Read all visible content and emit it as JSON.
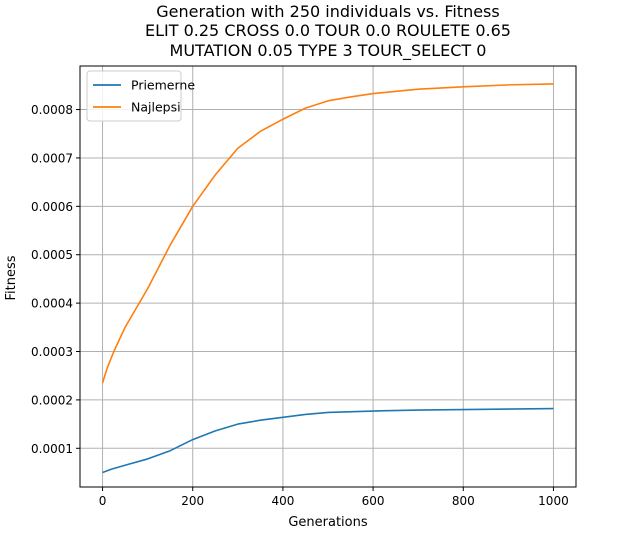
{
  "chart_data": {
    "type": "line",
    "title_lines": [
      "Generation with 250 individuals vs. Fitness",
      "ELIT 0.25 CROSS 0.0 TOUR 0.0 ROULETE 0.65",
      "MUTATION 0.05 TYPE 3 TOUR_SELECT 0"
    ],
    "xlabel": "Generations",
    "ylabel": "Fitness",
    "xlim": [
      -50,
      1050
    ],
    "ylim": [
      2e-05,
      0.00089
    ],
    "x_ticks": [
      0,
      200,
      400,
      600,
      800,
      1000
    ],
    "x_tick_labels": [
      "0",
      "200",
      "400",
      "600",
      "800",
      "1000"
    ],
    "y_ticks": [
      0.0001,
      0.0002,
      0.0003,
      0.0004,
      0.0005,
      0.0006,
      0.0007,
      0.0008
    ],
    "y_tick_labels": [
      "0.0001",
      "0.0002",
      "0.0003",
      "0.0004",
      "0.0005",
      "0.0006",
      "0.0007",
      "0.0008"
    ],
    "grid": true,
    "legend_position": "top-left",
    "series": [
      {
        "name": "Priemerne",
        "color": "#1f77b4",
        "points": [
          [
            0,
            5e-05
          ],
          [
            20,
            5.7e-05
          ],
          [
            50,
            6.5e-05
          ],
          [
            100,
            7.8e-05
          ],
          [
            150,
            9.5e-05
          ],
          [
            200,
            0.000118
          ],
          [
            250,
            0.000136
          ],
          [
            300,
            0.00015
          ],
          [
            350,
            0.000158
          ],
          [
            400,
            0.000164
          ],
          [
            450,
            0.00017
          ],
          [
            500,
            0.000174
          ],
          [
            600,
            0.000177
          ],
          [
            700,
            0.000179
          ],
          [
            800,
            0.00018
          ],
          [
            900,
            0.000181
          ],
          [
            1000,
            0.000182
          ]
        ]
      },
      {
        "name": "Najlepsi",
        "color": "#ff7f0e",
        "points": [
          [
            0,
            0.000235
          ],
          [
            10,
            0.000265
          ],
          [
            25,
            0.0003
          ],
          [
            50,
            0.00035
          ],
          [
            100,
            0.00043
          ],
          [
            150,
            0.00052
          ],
          [
            200,
            0.0006
          ],
          [
            250,
            0.000665
          ],
          [
            300,
            0.00072
          ],
          [
            350,
            0.000755
          ],
          [
            400,
            0.00078
          ],
          [
            450,
            0.000803
          ],
          [
            500,
            0.000818
          ],
          [
            550,
            0.000826
          ],
          [
            600,
            0.000833
          ],
          [
            700,
            0.000842
          ],
          [
            800,
            0.000847
          ],
          [
            900,
            0.000851
          ],
          [
            1000,
            0.000853
          ]
        ]
      }
    ]
  }
}
